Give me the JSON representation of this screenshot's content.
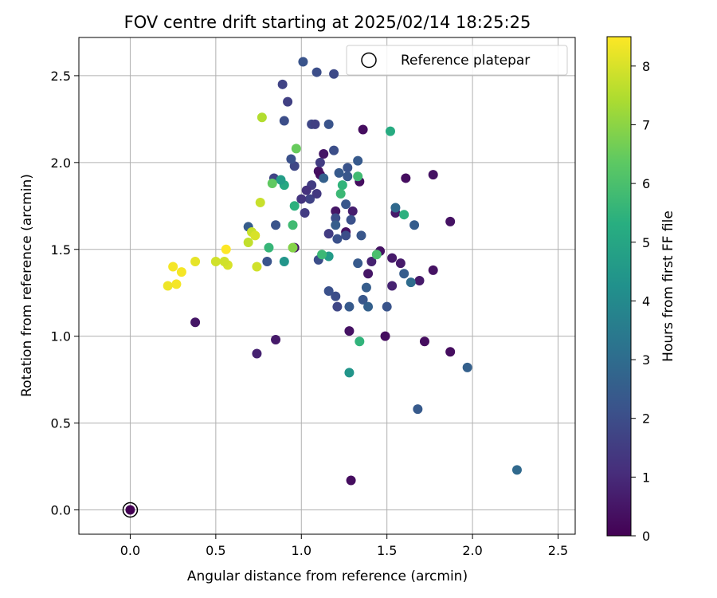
{
  "chart_data": {
    "type": "scatter",
    "title": "FOV centre drift starting at 2025/02/14 18:25:25",
    "xlabel": "Angular distance from reference (arcmin)",
    "ylabel": "Rotation from reference (arcmin)",
    "xlim": [
      -0.3,
      2.6
    ],
    "ylim": [
      -0.14,
      2.72
    ],
    "xticks": [
      0.0,
      0.5,
      1.0,
      1.5,
      2.0,
      2.5
    ],
    "xtick_labels": [
      "0.0",
      "0.5",
      "1.0",
      "1.5",
      "2.0",
      "2.5"
    ],
    "yticks": [
      0.0,
      0.5,
      1.0,
      1.5,
      2.0,
      2.5
    ],
    "ytick_labels": [
      "0.0",
      "0.5",
      "1.0",
      "1.5",
      "2.0",
      "2.5"
    ],
    "grid": true,
    "legend": {
      "position": "top-right",
      "label": "Reference platepar"
    },
    "reference_point": {
      "x": 0.0,
      "y": 0.0
    },
    "colorbar": {
      "label": "Hours from first FF file",
      "range": [
        0,
        8.5
      ],
      "ticks": [
        0,
        1,
        2,
        3,
        4,
        5,
        6,
        7,
        8
      ],
      "tick_labels": [
        "0",
        "1",
        "2",
        "3",
        "4",
        "5",
        "6",
        "7",
        "8"
      ],
      "colormap": "viridis"
    },
    "points": [
      [
        0.0,
        0.0,
        0.0
      ],
      [
        0.38,
        1.08,
        0.5
      ],
      [
        0.74,
        0.9,
        0.8
      ],
      [
        0.85,
        0.98,
        0.6
      ],
      [
        1.28,
        1.03,
        0.4
      ],
      [
        1.29,
        0.17,
        0.3
      ],
      [
        1.49,
        1.0,
        0.3
      ],
      [
        1.72,
        0.97,
        0.3
      ],
      [
        1.87,
        0.91,
        0.3
      ],
      [
        1.36,
        2.19,
        0.3
      ],
      [
        1.61,
        1.91,
        0.3
      ],
      [
        1.77,
        1.93,
        0.4
      ],
      [
        1.87,
        1.66,
        0.4
      ],
      [
        1.77,
        1.38,
        0.4
      ],
      [
        1.69,
        1.32,
        0.6
      ],
      [
        1.55,
        1.71,
        0.6
      ],
      [
        1.53,
        1.45,
        0.6
      ],
      [
        1.58,
        1.42,
        0.6
      ],
      [
        1.53,
        1.29,
        0.8
      ],
      [
        1.46,
        1.49,
        0.4
      ],
      [
        1.41,
        1.43,
        0.8
      ],
      [
        1.39,
        1.36,
        0.5
      ],
      [
        1.34,
        1.89,
        0.3
      ],
      [
        1.3,
        1.72,
        0.7
      ],
      [
        1.26,
        1.6,
        0.4
      ],
      [
        1.2,
        1.72,
        0.5
      ],
      [
        1.13,
        2.05,
        0.5
      ],
      [
        1.1,
        1.95,
        0.4
      ],
      [
        1.11,
        1.93,
        0.3
      ],
      [
        0.96,
        1.51,
        0.5
      ],
      [
        1.01,
        2.58,
        2.2
      ],
      [
        1.09,
        2.52,
        2.0
      ],
      [
        1.19,
        2.51,
        1.9
      ],
      [
        0.89,
        2.45,
        1.7
      ],
      [
        0.92,
        2.35,
        1.6
      ],
      [
        0.9,
        2.24,
        2.0
      ],
      [
        1.06,
        2.22,
        1.8
      ],
      [
        1.08,
        2.22,
        1.6
      ],
      [
        1.16,
        2.22,
        2.2
      ],
      [
        1.19,
        2.07,
        2.0
      ],
      [
        0.96,
        1.98,
        1.8
      ],
      [
        0.94,
        2.02,
        2.1
      ],
      [
        0.84,
        1.91,
        1.7
      ],
      [
        1.13,
        1.91,
        2.6
      ],
      [
        1.11,
        2.0,
        1.5
      ],
      [
        1.06,
        1.87,
        1.5
      ],
      [
        1.05,
        1.79,
        1.7
      ],
      [
        1.09,
        1.82,
        1.4
      ],
      [
        1.03,
        1.84,
        1.2
      ],
      [
        1.0,
        1.79,
        1.3
      ],
      [
        1.02,
        1.71,
        1.5
      ],
      [
        0.85,
        1.64,
        2.2
      ],
      [
        0.69,
        1.63,
        2.5
      ],
      [
        0.8,
        1.43,
        2.2
      ],
      [
        1.1,
        1.44,
        2.0
      ],
      [
        1.16,
        1.59,
        1.5
      ],
      [
        1.21,
        1.56,
        2.1
      ],
      [
        1.2,
        1.68,
        2.0
      ],
      [
        1.22,
        1.94,
        2.4
      ],
      [
        1.27,
        1.97,
        2.2
      ],
      [
        1.27,
        1.92,
        2.3
      ],
      [
        1.33,
        2.01,
        2.4
      ],
      [
        1.26,
        1.76,
        2.3
      ],
      [
        1.29,
        1.67,
        2.1
      ],
      [
        1.2,
        1.64,
        2.5
      ],
      [
        1.26,
        1.58,
        2.0
      ],
      [
        1.35,
        1.58,
        2.3
      ],
      [
        1.33,
        1.42,
        2.4
      ],
      [
        1.38,
        1.28,
        2.5
      ],
      [
        1.36,
        1.21,
        2.3
      ],
      [
        1.39,
        1.17,
        2.6
      ],
      [
        1.28,
        1.17,
        2.4
      ],
      [
        1.2,
        1.23,
        2.0
      ],
      [
        1.16,
        1.26,
        2.1
      ],
      [
        1.21,
        1.17,
        1.8
      ],
      [
        1.5,
        1.17,
        2.2
      ],
      [
        1.6,
        1.36,
        2.5
      ],
      [
        1.64,
        1.31,
        3.0
      ],
      [
        1.66,
        1.64,
        2.5
      ],
      [
        1.68,
        0.58,
        2.4
      ],
      [
        1.97,
        0.82,
        2.6
      ],
      [
        2.26,
        0.23,
        2.9
      ],
      [
        1.55,
        1.74,
        2.9
      ],
      [
        1.6,
        1.7,
        5.4
      ],
      [
        1.52,
        2.18,
        5.2
      ],
      [
        1.24,
        1.87,
        5.5
      ],
      [
        1.23,
        1.82,
        5.7
      ],
      [
        1.33,
        1.92,
        5.8
      ],
      [
        1.16,
        1.46,
        4.6
      ],
      [
        1.12,
        1.47,
        5.7
      ],
      [
        1.28,
        0.79,
        4.4
      ],
      [
        1.34,
        0.97,
        5.5
      ],
      [
        1.44,
        1.47,
        6.0
      ],
      [
        0.9,
        1.43,
        4.4
      ],
      [
        0.9,
        1.87,
        5.1
      ],
      [
        0.88,
        1.9,
        4.7
      ],
      [
        0.83,
        1.88,
        6.4
      ],
      [
        0.97,
        2.08,
        6.5
      ],
      [
        0.96,
        1.75,
        5.4
      ],
      [
        0.95,
        1.64,
        5.8
      ],
      [
        0.81,
        1.51,
        5.6
      ],
      [
        0.95,
        1.51,
        6.9
      ],
      [
        0.77,
        2.26,
        7.5
      ],
      [
        0.76,
        1.77,
        7.8
      ],
      [
        0.69,
        1.54,
        7.7
      ],
      [
        0.71,
        1.6,
        7.8
      ],
      [
        0.73,
        1.58,
        8.0
      ],
      [
        0.74,
        1.4,
        7.9
      ],
      [
        0.56,
        1.5,
        8.5
      ],
      [
        0.57,
        1.41,
        8.0
      ],
      [
        0.55,
        1.43,
        7.9
      ],
      [
        0.5,
        1.43,
        7.9
      ],
      [
        0.38,
        1.43,
        8.2
      ],
      [
        0.25,
        1.4,
        8.4
      ],
      [
        0.3,
        1.37,
        8.4
      ],
      [
        0.27,
        1.3,
        8.4
      ],
      [
        0.22,
        1.29,
        8.3
      ]
    ]
  }
}
